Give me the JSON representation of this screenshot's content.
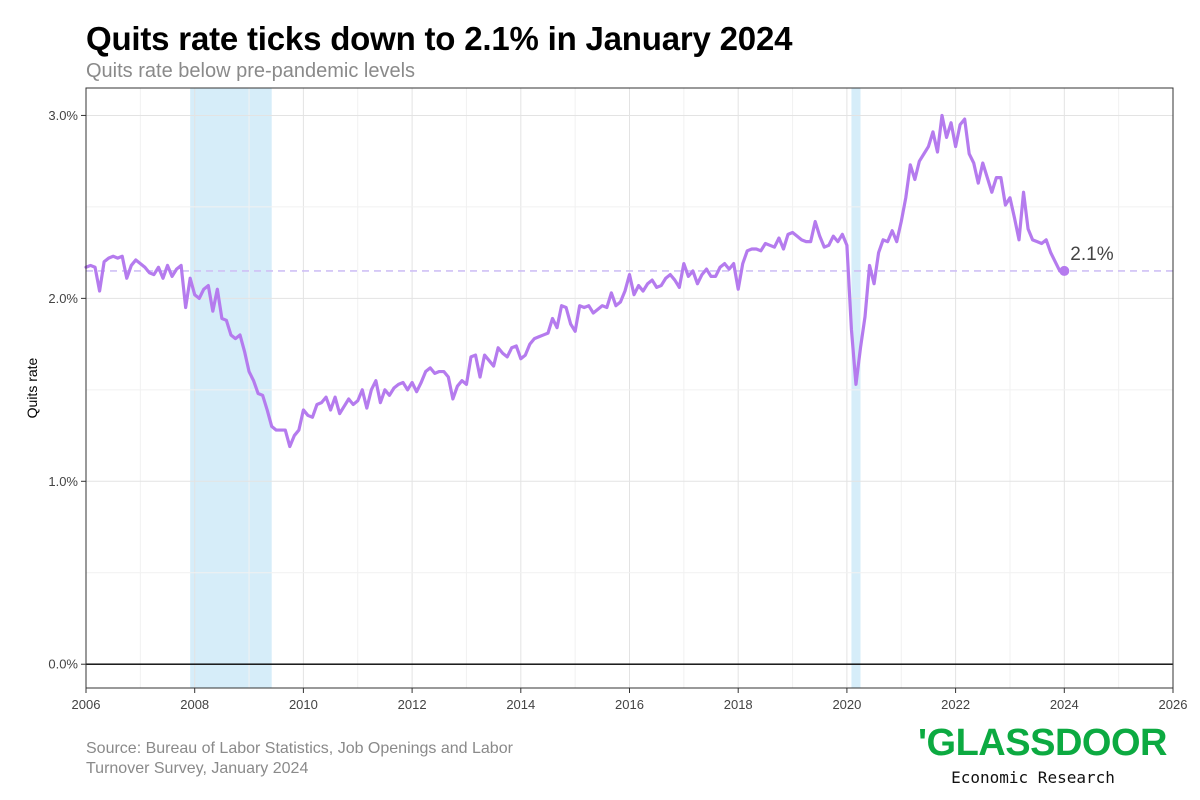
{
  "header": {
    "title": "Quits rate ticks down to 2.1% in January 2024",
    "subtitle": "Quits rate below pre-pandemic levels"
  },
  "footer": {
    "source": "Source: Bureau of Labor Statistics, Job Openings and Labor Turnover Survey, January 2024",
    "logo_text": "'GLASSDOOR",
    "logo_subtitle": "Economic Research"
  },
  "colors": {
    "line": "#b57bee",
    "recession": "#d6edf9",
    "reference": "#cfc0f5",
    "logo": "#0caa41"
  },
  "chart_data": {
    "type": "line",
    "title": "Quits rate ticks down to 2.1% in January 2024",
    "subtitle": "Quits rate below pre-pandemic levels",
    "xlabel": "",
    "ylabel": "Quits rate",
    "xlim": [
      2006,
      2026
    ],
    "ylim": [
      -0.13,
      3.15
    ],
    "x_ticks": [
      2006,
      2008,
      2010,
      2012,
      2014,
      2016,
      2018,
      2020,
      2022,
      2024,
      2026
    ],
    "x_tick_labels": [
      "2006",
      "2008",
      "2010",
      "2012",
      "2014",
      "2016",
      "2018",
      "2020",
      "2022",
      "2024",
      "2026"
    ],
    "y_ticks": [
      0,
      1,
      2,
      3
    ],
    "y_tick_labels": [
      "0.0%",
      "1.0%",
      "2.0%",
      "3.0%"
    ],
    "grid": true,
    "recession_bands": [
      {
        "start": "2007-12",
        "end": "2009-06"
      },
      {
        "start": "2020-02",
        "end": "2020-04"
      }
    ],
    "reference_line": {
      "value": 2.15,
      "style": "dashed"
    },
    "end_label": {
      "date": "2024-01",
      "value": 2.15,
      "text": "2.1%"
    },
    "series": [
      {
        "start": "2006-01",
        "frequency": "monthly",
        "values": [
          2.17,
          2.18,
          2.17,
          2.04,
          2.2,
          2.22,
          2.23,
          2.22,
          2.23,
          2.11,
          2.18,
          2.21,
          2.19,
          2.17,
          2.14,
          2.13,
          2.17,
          2.11,
          2.18,
          2.12,
          2.16,
          2.18,
          1.95,
          2.11,
          2.02,
          2.0,
          2.05,
          2.07,
          1.93,
          2.05,
          1.89,
          1.88,
          1.8,
          1.78,
          1.8,
          1.71,
          1.6,
          1.55,
          1.48,
          1.47,
          1.39,
          1.3,
          1.28,
          1.28,
          1.28,
          1.19,
          1.25,
          1.28,
          1.39,
          1.36,
          1.35,
          1.42,
          1.43,
          1.46,
          1.39,
          1.46,
          1.37,
          1.41,
          1.45,
          1.42,
          1.44,
          1.5,
          1.4,
          1.5,
          1.55,
          1.43,
          1.5,
          1.47,
          1.51,
          1.53,
          1.54,
          1.5,
          1.54,
          1.49,
          1.54,
          1.6,
          1.62,
          1.59,
          1.6,
          1.6,
          1.57,
          1.45,
          1.52,
          1.55,
          1.53,
          1.68,
          1.69,
          1.57,
          1.69,
          1.66,
          1.63,
          1.73,
          1.7,
          1.68,
          1.73,
          1.74,
          1.67,
          1.69,
          1.75,
          1.78,
          1.79,
          1.8,
          1.81,
          1.89,
          1.84,
          1.96,
          1.95,
          1.86,
          1.82,
          1.96,
          1.95,
          1.96,
          1.92,
          1.94,
          1.96,
          1.95,
          2.03,
          1.96,
          1.98,
          2.04,
          2.13,
          2.02,
          2.07,
          2.04,
          2.08,
          2.1,
          2.06,
          2.07,
          2.11,
          2.13,
          2.1,
          2.06,
          2.19,
          2.12,
          2.15,
          2.08,
          2.13,
          2.16,
          2.12,
          2.12,
          2.17,
          2.19,
          2.16,
          2.19,
          2.05,
          2.19,
          2.26,
          2.27,
          2.27,
          2.26,
          2.3,
          2.29,
          2.28,
          2.33,
          2.27,
          2.35,
          2.36,
          2.34,
          2.32,
          2.31,
          2.31,
          2.42,
          2.34,
          2.28,
          2.29,
          2.34,
          2.31,
          2.35,
          2.29,
          1.83,
          1.53,
          1.73,
          1.9,
          2.18,
          2.08,
          2.25,
          2.32,
          2.31,
          2.37,
          2.31,
          2.42,
          2.55,
          2.73,
          2.65,
          2.75,
          2.79,
          2.83,
          2.91,
          2.8,
          3.0,
          2.88,
          2.96,
          2.83,
          2.95,
          2.98,
          2.79,
          2.74,
          2.63,
          2.74,
          2.66,
          2.58,
          2.66,
          2.66,
          2.51,
          2.55,
          2.44,
          2.32,
          2.58,
          2.38,
          2.32,
          2.31,
          2.3,
          2.32,
          2.25,
          2.2,
          2.15
        ]
      }
    ]
  }
}
